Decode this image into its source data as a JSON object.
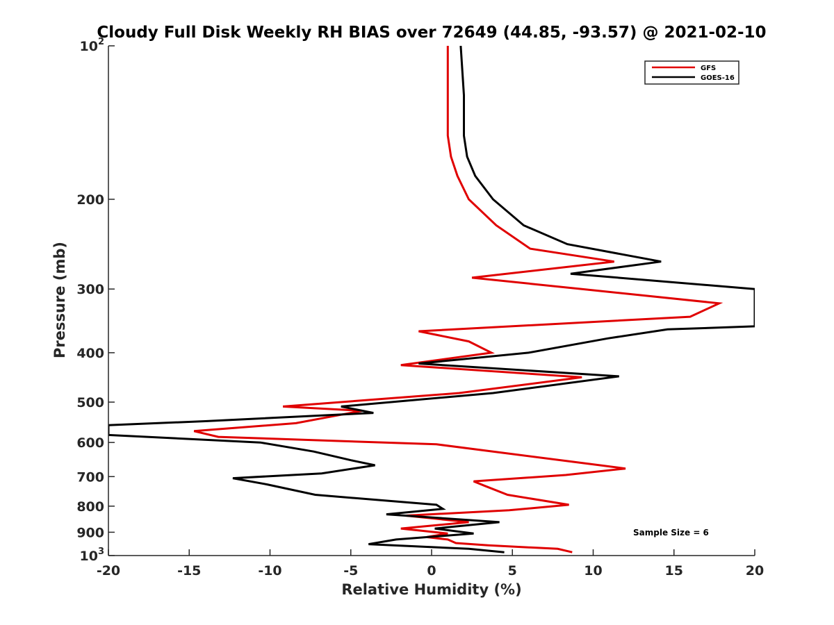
{
  "chart_data": {
    "type": "line",
    "title": "Cloudy Full Disk Weekly RH BIAS over 72649 (44.85, -93.57) @ 2021-02-10",
    "xlabel": "Relative Humidity (%)",
    "ylabel": "Pressure (mb)",
    "xlim": [
      -20,
      20
    ],
    "ylim": [
      100,
      1000
    ],
    "y_scale": "log",
    "y_reversed": true,
    "grid": false,
    "legend_position": "top-right",
    "annotation": "Sample Size = 6",
    "x_ticks": [
      "-20",
      "-15",
      "-10",
      "-5",
      "0",
      "5",
      "10",
      "15",
      "20"
    ],
    "y_ticks": [
      {
        "value": 100,
        "base": "10",
        "exp": "2"
      },
      {
        "value": 200,
        "label": "200"
      },
      {
        "value": 300,
        "label": "300"
      },
      {
        "value": 400,
        "label": "400"
      },
      {
        "value": 500,
        "label": "500"
      },
      {
        "value": 600,
        "label": "600"
      },
      {
        "value": 700,
        "label": "700"
      },
      {
        "value": 800,
        "label": "800"
      },
      {
        "value": 900,
        "label": "900"
      },
      {
        "value": 1000,
        "base": "10",
        "exp": "3"
      }
    ],
    "series": [
      {
        "name": "GFS",
        "color": "#e00000",
        "points": [
          [
            1.0,
            100
          ],
          [
            1.0,
            125
          ],
          [
            1.0,
            150
          ],
          [
            1.2,
            165
          ],
          [
            1.6,
            180
          ],
          [
            2.3,
            200
          ],
          [
            4.0,
            225
          ],
          [
            6.1,
            250
          ],
          [
            11.3,
            265
          ],
          [
            2.5,
            285
          ],
          [
            9.3,
            300
          ],
          [
            17.8,
            320
          ],
          [
            16.0,
            340
          ],
          [
            -0.8,
            363
          ],
          [
            2.3,
            380
          ],
          [
            3.7,
            400
          ],
          [
            -1.9,
            423
          ],
          [
            9.3,
            447
          ],
          [
            1.7,
            480
          ],
          [
            -9.2,
            510
          ],
          [
            -4.3,
            520
          ],
          [
            -8.4,
            550
          ],
          [
            -14.7,
            570
          ],
          [
            -13.2,
            585
          ],
          [
            0.3,
            605
          ],
          [
            8.8,
            655
          ],
          [
            12.0,
            675
          ],
          [
            8.3,
            695
          ],
          [
            2.6,
            715
          ],
          [
            3.3,
            730
          ],
          [
            4.7,
            760
          ],
          [
            8.5,
            795
          ],
          [
            4.8,
            815
          ],
          [
            -1.6,
            835
          ],
          [
            2.3,
            860
          ],
          [
            -1.9,
            885
          ],
          [
            1.0,
            905
          ],
          [
            -0.3,
            920
          ],
          [
            1.0,
            930
          ],
          [
            1.5,
            945
          ],
          [
            3.5,
            955
          ],
          [
            7.8,
            970
          ],
          [
            8.7,
            985
          ]
        ]
      },
      {
        "name": "GOES-16",
        "color": "#000000",
        "points": [
          [
            1.8,
            100
          ],
          [
            2.0,
            125
          ],
          [
            2.0,
            150
          ],
          [
            2.2,
            165
          ],
          [
            2.7,
            180
          ],
          [
            3.8,
            200
          ],
          [
            5.7,
            225
          ],
          [
            8.4,
            245
          ],
          [
            14.2,
            265
          ],
          [
            8.6,
            280
          ],
          [
            20.0,
            300
          ],
          [
            20.0,
            355
          ],
          [
            14.6,
            360
          ],
          [
            10.9,
            375
          ],
          [
            6.0,
            400
          ],
          [
            -0.8,
            420
          ],
          [
            11.6,
            445
          ],
          [
            3.8,
            480
          ],
          [
            -5.6,
            510
          ],
          [
            -3.6,
            525
          ],
          [
            -14.0,
            545
          ],
          [
            -20.0,
            555
          ],
          [
            -20.0,
            580
          ],
          [
            -10.6,
            600
          ],
          [
            -7.3,
            625
          ],
          [
            -5.0,
            650
          ],
          [
            -3.5,
            665
          ],
          [
            -6.8,
            690
          ],
          [
            -12.3,
            705
          ],
          [
            -10.2,
            725
          ],
          [
            -7.2,
            760
          ],
          [
            0.3,
            795
          ],
          [
            0.7,
            810
          ],
          [
            -2.8,
            830
          ],
          [
            4.2,
            860
          ],
          [
            0.2,
            885
          ],
          [
            2.6,
            905
          ],
          [
            -2.2,
            930
          ],
          [
            -3.9,
            950
          ],
          [
            2.3,
            970
          ],
          [
            4.5,
            985
          ]
        ]
      }
    ]
  }
}
